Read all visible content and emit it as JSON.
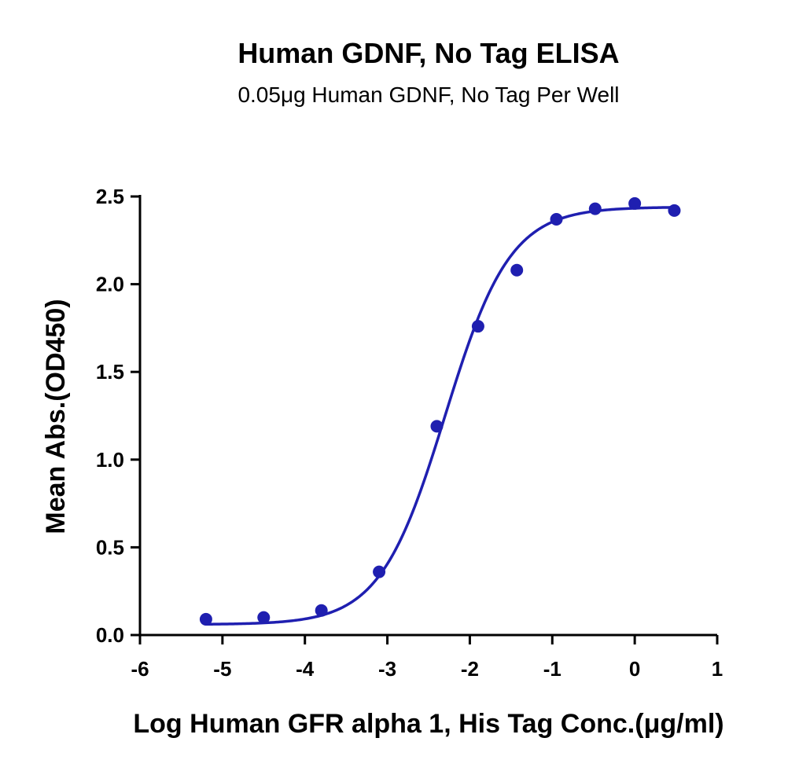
{
  "chart_data": {
    "type": "scatter",
    "title": "Human GDNF, No Tag ELISA",
    "subtitle": "0.05μg Human GDNF, No Tag Per Well",
    "xlabel": "Log Human GFR alpha 1, His Tag Conc.(μg/ml)",
    "ylabel": "Mean Abs.(OD450)",
    "xlim": [
      -6,
      1
    ],
    "ylim": [
      0,
      2.5
    ],
    "x_ticks": [
      -6,
      -5,
      -4,
      -3,
      -2,
      -1,
      0,
      1
    ],
    "y_ticks": [
      0.0,
      0.5,
      1.0,
      1.5,
      2.0,
      2.5
    ],
    "x_tick_labels": [
      "-6",
      "-5",
      "-4",
      "-3",
      "-2",
      "-1",
      "0",
      "1"
    ],
    "y_tick_labels": [
      "0.0",
      "0.5",
      "1.0",
      "1.5",
      "2.0",
      "2.5"
    ],
    "grid": false,
    "series": [
      {
        "points": [
          {
            "x": -5.2,
            "y": 0.09
          },
          {
            "x": -4.5,
            "y": 0.1
          },
          {
            "x": -3.8,
            "y": 0.14
          },
          {
            "x": -3.1,
            "y": 0.36
          },
          {
            "x": -2.4,
            "y": 1.19
          },
          {
            "x": -1.9,
            "y": 1.76
          },
          {
            "x": -1.43,
            "y": 2.08
          },
          {
            "x": -0.95,
            "y": 2.37
          },
          {
            "x": -0.48,
            "y": 2.43
          },
          {
            "x": 0.0,
            "y": 2.46
          },
          {
            "x": 0.48,
            "y": 2.42
          }
        ],
        "fit": {
          "model": "4PL",
          "bottom": 0.06,
          "top": 2.44,
          "log_ec50": -2.3,
          "hill_slope": 1.1,
          "x_range": [
            -5.2,
            0.48
          ]
        },
        "color": "#1f1fb0"
      }
    ]
  }
}
